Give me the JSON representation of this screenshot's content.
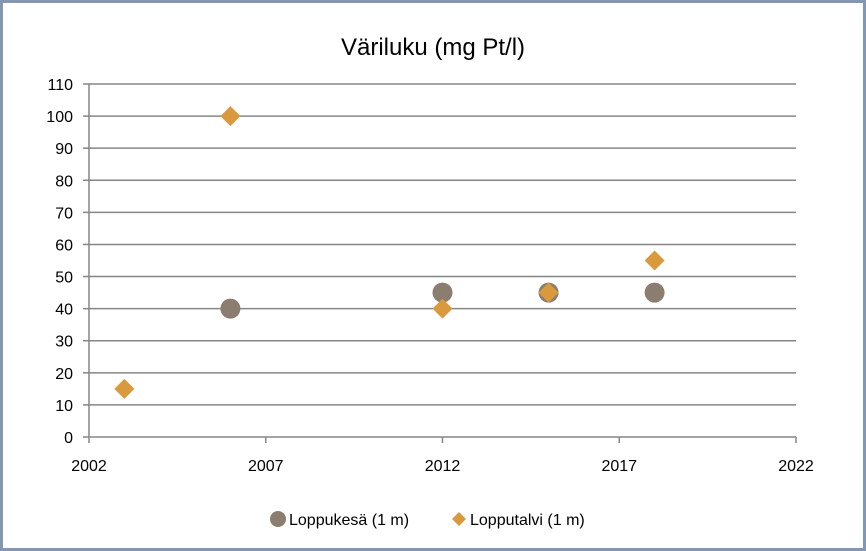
{
  "chart_data": {
    "type": "scatter",
    "title": "Väriluku  (mg Pt/l)",
    "xlabel": "",
    "ylabel": "",
    "xlim": [
      2002,
      2022
    ],
    "ylim": [
      0,
      110
    ],
    "x_ticks": [
      2002,
      2007,
      2012,
      2017,
      2022
    ],
    "y_ticks": [
      0,
      10,
      20,
      30,
      40,
      50,
      60,
      70,
      80,
      90,
      100,
      110
    ],
    "grid": "horizontal",
    "legend_position": "bottom",
    "series": [
      {
        "name": "Loppukesä (1 m)",
        "marker": "circle",
        "color": "#8b7d70",
        "points": [
          {
            "x": 2006,
            "y": 40
          },
          {
            "x": 2012,
            "y": 45
          },
          {
            "x": 2015,
            "y": 45
          },
          {
            "x": 2018,
            "y": 45
          }
        ]
      },
      {
        "name": "Lopputalvi (1 m)",
        "marker": "diamond",
        "color": "#d99a3e",
        "points": [
          {
            "x": 2003,
            "y": 15
          },
          {
            "x": 2006,
            "y": 100
          },
          {
            "x": 2012,
            "y": 40
          },
          {
            "x": 2015,
            "y": 45
          },
          {
            "x": 2018,
            "y": 55
          }
        ]
      }
    ]
  }
}
